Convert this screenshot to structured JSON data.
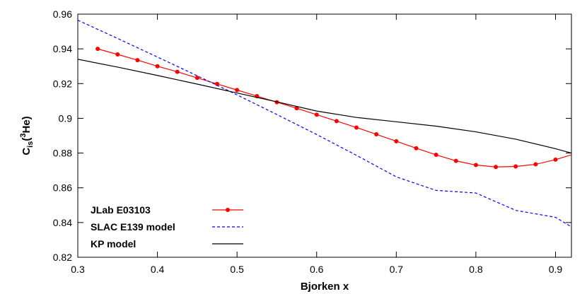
{
  "chart_data": {
    "type": "line",
    "xlabel": "Bjorken x",
    "ylabel": {
      "base": "C",
      "sub": "is",
      "paren_open": "(",
      "sup": "3",
      "tail": "He)"
    },
    "xlim": [
      0.3,
      0.92
    ],
    "ylim": [
      0.82,
      0.96
    ],
    "xticks": [
      0.3,
      0.4,
      0.5,
      0.6,
      0.7,
      0.8,
      0.9
    ],
    "xtick_labels": [
      "0.3",
      "0.4",
      "0.5",
      "0.6",
      "0.7",
      "0.8",
      "0.9"
    ],
    "yticks": [
      0.82,
      0.84,
      0.86,
      0.88,
      0.9,
      0.92,
      0.94,
      0.96
    ],
    "ytick_labels": [
      "0.82",
      "0.84",
      "0.86",
      "0.88",
      "0.9",
      "0.92",
      "0.94",
      "0.96"
    ],
    "grid": false,
    "legend_position": "bottom-left",
    "series": [
      {
        "name": "JLab E03103",
        "color": "#ff0000",
        "style": "solid-with-points",
        "x": [
          0.325,
          0.35,
          0.375,
          0.4,
          0.425,
          0.45,
          0.475,
          0.5,
          0.525,
          0.55,
          0.575,
          0.6,
          0.625,
          0.65,
          0.675,
          0.7,
          0.725,
          0.75,
          0.775,
          0.8,
          0.825,
          0.85,
          0.875,
          0.9,
          0.92
        ],
        "y": [
          0.94,
          0.9368,
          0.9335,
          0.93,
          0.9268,
          0.9233,
          0.9198,
          0.9163,
          0.9128,
          0.9093,
          0.9058,
          0.9021,
          0.8984,
          0.8947,
          0.8908,
          0.8868,
          0.8828,
          0.879,
          0.8755,
          0.8731,
          0.872,
          0.8723,
          0.8735,
          0.8762,
          0.879
        ],
        "markers": true
      },
      {
        "name": "SLAC E139 model",
        "color": "#0000ff",
        "style": "dashed",
        "x": [
          0.3,
          0.35,
          0.4,
          0.45,
          0.5,
          0.55,
          0.6,
          0.65,
          0.7,
          0.75,
          0.8,
          0.85,
          0.9,
          0.92
        ],
        "y": [
          0.9565,
          0.946,
          0.9353,
          0.9245,
          0.9135,
          0.9022,
          0.8907,
          0.8787,
          0.8663,
          0.8585,
          0.857,
          0.847,
          0.843,
          0.8375
        ],
        "markers": false
      },
      {
        "name": "KP model",
        "color": "#000000",
        "style": "solid",
        "x": [
          0.3,
          0.35,
          0.4,
          0.45,
          0.5,
          0.55,
          0.6,
          0.65,
          0.7,
          0.75,
          0.8,
          0.85,
          0.9,
          0.92
        ],
        "y": [
          0.934,
          0.9295,
          0.9247,
          0.9197,
          0.9146,
          0.9095,
          0.9042,
          0.9005,
          0.898,
          0.8955,
          0.8922,
          0.888,
          0.8825,
          0.88
        ],
        "markers": false
      }
    ]
  }
}
